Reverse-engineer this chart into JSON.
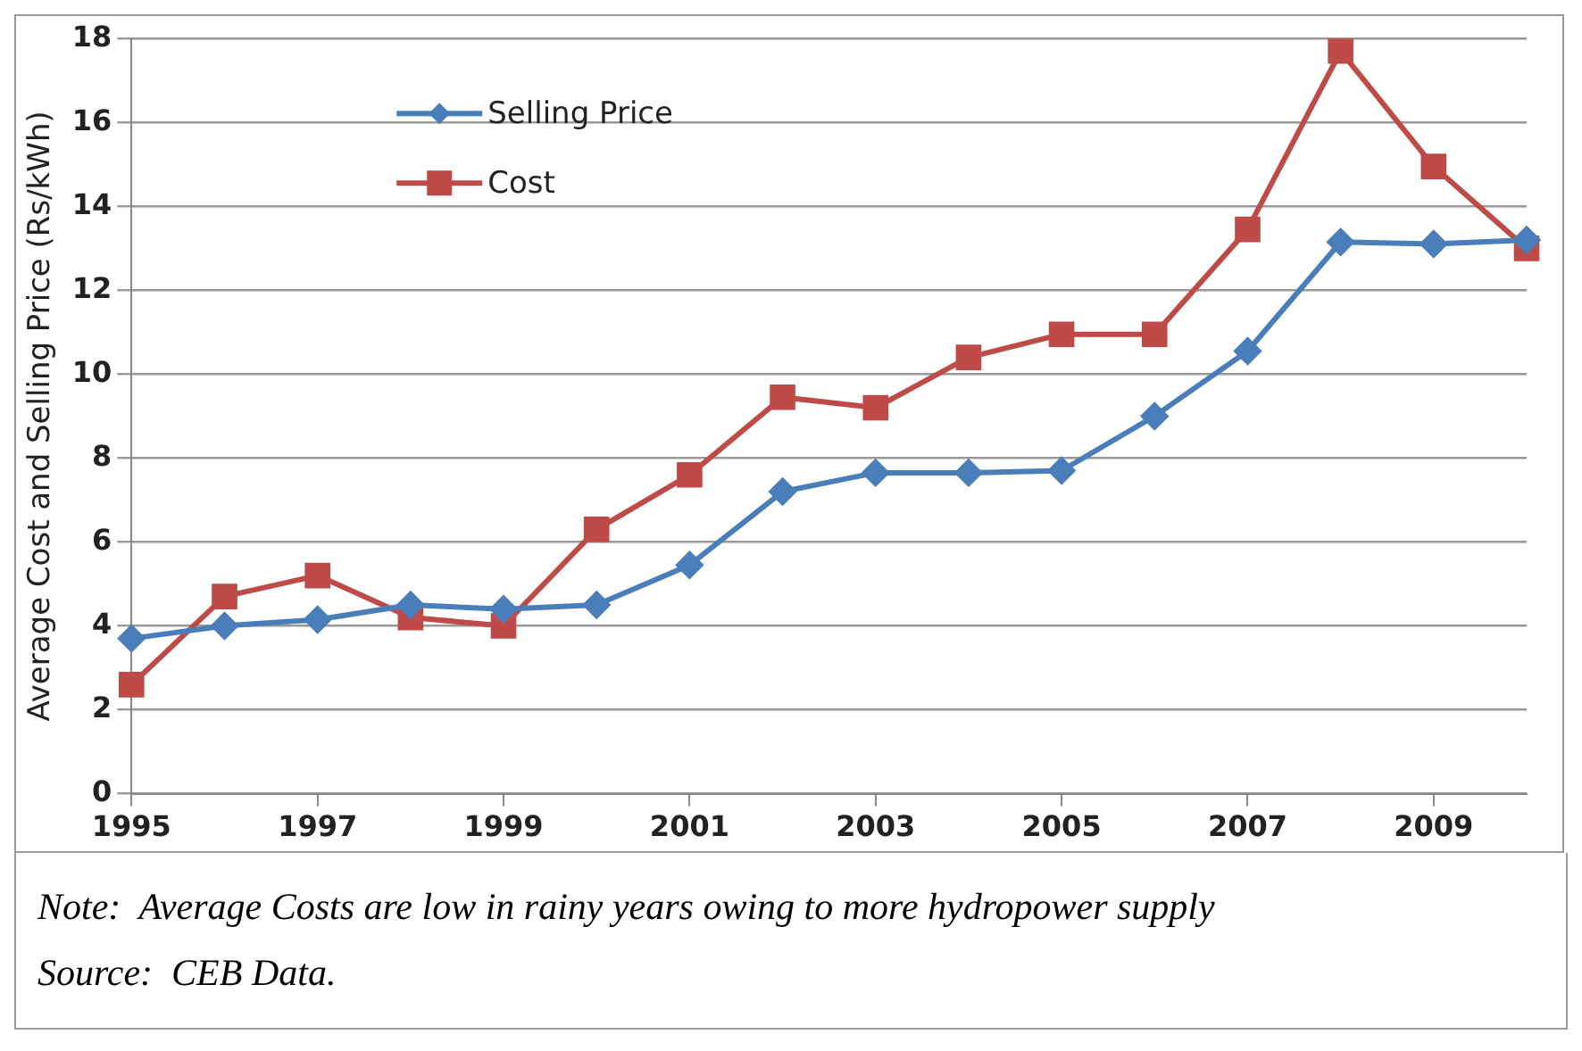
{
  "chart_data": {
    "type": "line",
    "ylabel": "Average Cost and Selling Price (Rs/kWh)",
    "categories": [
      "1995",
      null,
      "1997",
      null,
      "1999",
      null,
      "2001",
      null,
      "2003",
      null,
      "2005",
      null,
      "2007",
      null,
      "2009",
      null
    ],
    "series": [
      {
        "name": "Selling Price",
        "color": "#4a7ebb",
        "marker": "diamond",
        "values": [
          3.7,
          4.0,
          4.15,
          4.5,
          4.4,
          4.5,
          5.45,
          7.2,
          7.65,
          7.65,
          7.7,
          9.0,
          10.55,
          13.15,
          13.1,
          13.2
        ]
      },
      {
        "name": "Cost",
        "color": "#be4b48",
        "marker": "square",
        "values": [
          2.6,
          4.7,
          5.2,
          4.2,
          4.0,
          6.3,
          7.6,
          9.45,
          9.2,
          10.4,
          10.95,
          10.95,
          13.45,
          17.7,
          14.95,
          13.0
        ]
      }
    ],
    "ylim": [
      0,
      18
    ],
    "yticks": [
      0,
      2,
      4,
      6,
      8,
      10,
      12,
      14,
      16,
      18
    ],
    "grid": "y",
    "legend": "top left",
    "annotations": [
      "Note:  Average Costs are low in rainy years owing to more hydropower supply",
      "Source:  CEB Data."
    ]
  }
}
